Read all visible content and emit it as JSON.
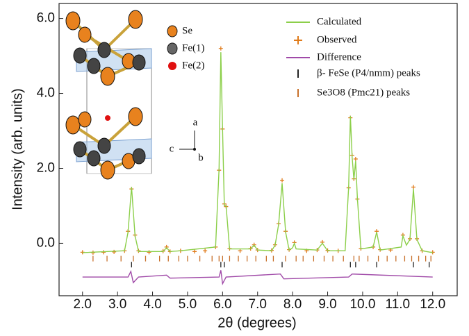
{
  "chart_data": {
    "type": "line",
    "xlabel": "2θ (degrees)",
    "ylabel": "Intensity (arb. units)",
    "xlim": [
      1.33,
      12.7
    ],
    "ylim": [
      -1.4,
      6.4
    ],
    "xticks": [
      {
        "value": 2,
        "label": "2.0"
      },
      {
        "value": 3,
        "label": "3.0"
      },
      {
        "value": 4,
        "label": "4.0"
      },
      {
        "value": 5,
        "label": "5.0"
      },
      {
        "value": 6,
        "label": "6.0"
      },
      {
        "value": 7,
        "label": "7.0"
      },
      {
        "value": 8,
        "label": "8.0"
      },
      {
        "value": 9,
        "label": "9.0"
      },
      {
        "value": 10,
        "label": "10.0"
      },
      {
        "value": 11,
        "label": "11.0"
      },
      {
        "value": 12,
        "label": "12.0"
      }
    ],
    "yticks": [
      {
        "value": 0,
        "label": "0.0"
      },
      {
        "value": 2,
        "label": "2.0"
      },
      {
        "value": 4,
        "label": "4.0"
      },
      {
        "value": 6,
        "label": "6.0"
      }
    ],
    "grid": false,
    "legend": "upper right",
    "series": [
      {
        "name": "Calculated",
        "color": "#8ccf4a",
        "style": "line",
        "x": [
          2.0,
          3.2,
          3.3,
          3.4,
          3.5,
          3.6,
          4.3,
          4.4,
          4.5,
          4.8,
          5.8,
          5.9,
          5.95,
          6.0,
          6.05,
          6.1,
          6.2,
          6.8,
          6.9,
          7.0,
          7.4,
          7.5,
          7.6,
          7.7,
          7.8,
          7.9,
          8.0,
          8.05,
          8.1,
          8.7,
          8.85,
          9.0,
          9.5,
          9.6,
          9.65,
          9.7,
          9.75,
          9.8,
          9.85,
          9.95,
          10.3,
          10.4,
          10.5,
          11.1,
          11.15,
          11.25,
          11.35,
          11.45,
          11.55,
          11.7,
          12.0
        ],
        "values": [
          -0.25,
          -0.2,
          0.3,
          1.5,
          0.2,
          -0.22,
          -0.22,
          -0.12,
          -0.22,
          -0.2,
          -0.1,
          2.0,
          5.1,
          3.0,
          1.0,
          1.0,
          -0.15,
          -0.15,
          -0.05,
          -0.18,
          -0.2,
          -0.05,
          0.5,
          1.6,
          0.3,
          -0.18,
          -0.12,
          0.0,
          -0.15,
          -0.18,
          0.0,
          -0.2,
          -0.2,
          1.5,
          3.4,
          2.3,
          1.7,
          2.2,
          1.2,
          -0.15,
          -0.1,
          0.3,
          -0.18,
          -0.1,
          0.2,
          -0.05,
          0.1,
          1.45,
          0.1,
          -0.2,
          -0.25
        ]
      },
      {
        "name": "Observed",
        "color": "#e07b1a",
        "style": "marker",
        "x": [
          2.0,
          2.3,
          2.6,
          2.9,
          3.2,
          3.3,
          3.4,
          3.5,
          3.6,
          3.9,
          4.3,
          4.4,
          4.5,
          4.8,
          5.2,
          5.5,
          5.8,
          5.9,
          5.95,
          6.0,
          6.05,
          6.1,
          6.2,
          6.5,
          6.8,
          6.9,
          7.0,
          7.4,
          7.5,
          7.6,
          7.7,
          7.8,
          7.9,
          8.05,
          8.4,
          8.7,
          8.85,
          9.0,
          9.3,
          9.6,
          9.65,
          9.7,
          9.75,
          9.8,
          9.85,
          9.95,
          10.3,
          10.4,
          10.5,
          10.8,
          11.15,
          11.35,
          11.45,
          11.55,
          11.7,
          12.0
        ],
        "values": [
          -0.24,
          -0.25,
          -0.24,
          -0.23,
          -0.2,
          0.32,
          1.45,
          0.22,
          -0.2,
          -0.24,
          -0.21,
          -0.1,
          -0.22,
          -0.2,
          -0.22,
          -0.2,
          -0.1,
          1.95,
          5.2,
          3.05,
          1.05,
          0.98,
          -0.14,
          -0.2,
          -0.14,
          -0.04,
          -0.18,
          -0.19,
          -0.04,
          0.52,
          1.68,
          0.32,
          -0.17,
          0.02,
          -0.2,
          -0.18,
          0.03,
          -0.19,
          -0.2,
          1.48,
          3.35,
          2.35,
          1.72,
          2.25,
          1.18,
          -0.14,
          -0.1,
          0.32,
          -0.17,
          -0.18,
          0.22,
          0.12,
          1.5,
          0.12,
          -0.2,
          -0.24
        ]
      },
      {
        "name": "Difference",
        "color": "#a04aa8",
        "style": "line",
        "x": [
          2.0,
          3.3,
          3.38,
          3.45,
          3.6,
          4.4,
          4.5,
          5.9,
          5.95,
          6.0,
          6.1,
          7.65,
          7.75,
          9.6,
          9.7,
          12.0
        ],
        "values": [
          -0.9,
          -0.9,
          -0.75,
          -1.05,
          -0.9,
          -0.85,
          -0.93,
          -0.9,
          -0.72,
          -1.08,
          -0.9,
          -0.82,
          -0.95,
          -0.9,
          -0.82,
          -0.9
        ]
      }
    ],
    "peak_sets": [
      {
        "name": "β- FeSe (P4/nmm) peaks",
        "color": "#222222",
        "positions": [
          3.4,
          5.95,
          6.05,
          7.7,
          9.65,
          9.8,
          10.4,
          11.45,
          11.9
        ]
      },
      {
        "name": "Se3O8 (Pmc21) peaks",
        "color": "#c8702a",
        "positions": [
          2.3,
          2.7,
          3.1,
          3.45,
          3.8,
          4.2,
          4.45,
          4.75,
          5.0,
          5.35,
          5.7,
          5.9,
          6.0,
          6.2,
          6.45,
          6.7,
          6.95,
          7.25,
          7.45,
          7.8,
          8.1,
          8.3,
          8.6,
          8.9,
          9.15,
          9.45,
          9.75,
          9.9,
          10.15,
          10.45,
          10.7,
          10.95,
          11.2,
          11.4,
          11.6,
          11.8,
          11.95
        ]
      }
    ],
    "inset": {
      "legend": [
        "Se",
        "Fe(1)",
        "Fe(2)"
      ],
      "axes": [
        "a",
        "c",
        "b"
      ]
    }
  }
}
